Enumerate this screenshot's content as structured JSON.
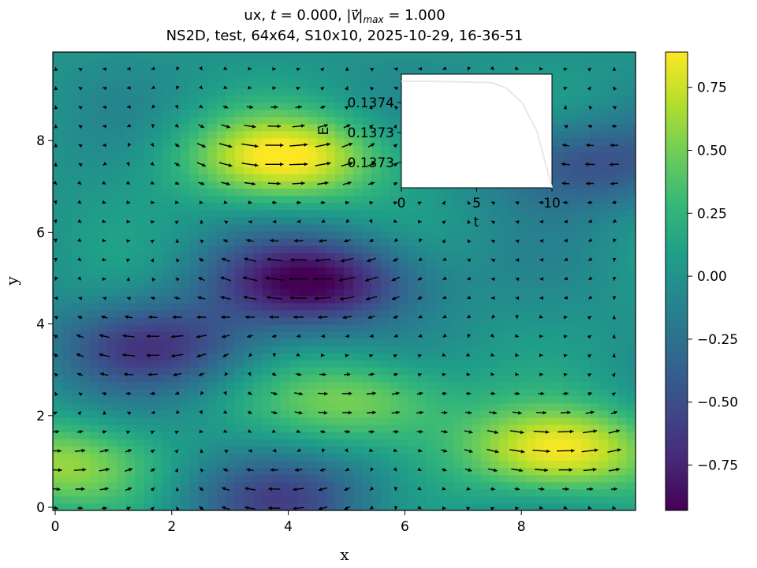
{
  "title": {
    "line1_prefix": "ux, ",
    "line1_t": "t",
    "line1_eq1": " = 0.000, |",
    "line1_v": "v",
    "line1_arrow": "→",
    "line1_max": "max",
    "line1_eq2": " = 1.000",
    "line2": "NS2D, test, 64x64, S10x10, 2025-10-29, 16-36-51"
  },
  "chart_data": [
    {
      "type": "heatmap",
      "field": "ux",
      "colormap": "viridis",
      "xlabel": "x",
      "ylabel": "y",
      "xlim": [
        0,
        10
      ],
      "ylim": [
        0,
        10
      ],
      "grid_size": [
        64,
        64
      ],
      "xticks": [
        0,
        2,
        4,
        6,
        8
      ],
      "yticks": [
        0,
        2,
        4,
        6,
        8
      ],
      "xtick_labels": [
        "0",
        "2",
        "4",
        "6",
        "8"
      ],
      "ytick_labels": [
        "0",
        "2",
        "4",
        "6",
        "8"
      ],
      "colorbar": {
        "range": [
          -0.93,
          0.89
        ],
        "ticks": [
          0.75,
          0.5,
          0.25,
          0.0,
          -0.25,
          -0.5,
          -0.75
        ],
        "tick_labels": [
          "0.75",
          "0.50",
          "0.25",
          "0.00",
          "−0.25",
          "−0.50",
          "−0.75"
        ]
      },
      "features": [
        {
          "kind": "max",
          "x": 4.0,
          "y": 7.7,
          "value": 0.89
        },
        {
          "kind": "max",
          "x": 8.7,
          "y": 1.3,
          "value": 0.89
        },
        {
          "kind": "max",
          "x": 5.3,
          "y": 2.4,
          "value": 0.55
        },
        {
          "kind": "max",
          "x": 0.0,
          "y": 1.0,
          "value": 0.6
        },
        {
          "kind": "min",
          "x": 4.5,
          "y": 5.0,
          "value": -0.93
        },
        {
          "kind": "min",
          "x": 1.8,
          "y": 3.6,
          "value": -0.6
        },
        {
          "kind": "min",
          "x": 9.2,
          "y": 7.6,
          "value": -0.5
        },
        {
          "kind": "min",
          "x": 4.0,
          "y": 0.3,
          "value": -0.5
        }
      ],
      "quiver": {
        "overlay": true,
        "color": "#000000"
      }
    },
    {
      "type": "line",
      "inset": true,
      "xlabel": "t",
      "ylabel": "E",
      "xticks": [
        0,
        5,
        10
      ],
      "xtick_labels": [
        "0",
        "5",
        "10"
      ],
      "ytick_labels": [
        "0.1374",
        "0.1373",
        "0.1373"
      ],
      "xlim": [
        0,
        10
      ],
      "series": [
        {
          "x": [
            0,
            2,
            4,
            6,
            7,
            8,
            9,
            10
          ],
          "y": [
            0.137415,
            0.137415,
            0.137414,
            0.137413,
            0.137405,
            0.137385,
            0.137345,
            0.137265
          ]
        }
      ],
      "ylim": [
        0.137265,
        0.137425
      ]
    }
  ]
}
